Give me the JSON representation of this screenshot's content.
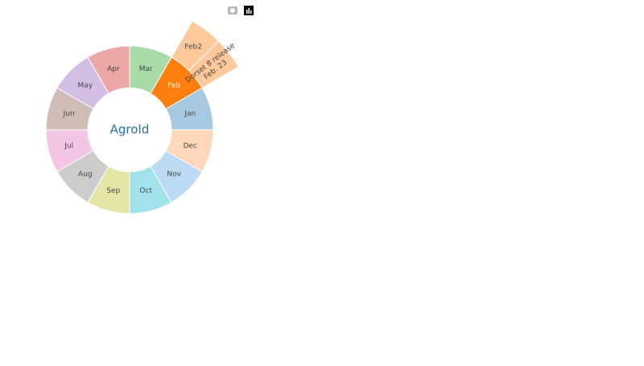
{
  "chart_data": {
    "type": "sunburst",
    "labels": [
      "AgroId",
      "Jan",
      "Feb",
      "Mar",
      "Apr",
      "May",
      "Jun",
      "Jul",
      "Aug",
      "Sep",
      "Oct",
      "Nov",
      "Dec",
      "Dorset 8 release<br>Feb. 23",
      "Feb2"
    ],
    "parents": [
      "",
      "AgroId",
      "AgroId",
      "AgroId",
      "AgroId",
      "AgroId",
      "AgroId",
      "AgroId",
      "AgroId",
      "AgroId",
      "AgroId",
      "AgroId",
      "AgroId",
      "Feb",
      "Feb"
    ],
    "values": [
      12,
      1,
      1,
      1,
      1,
      1,
      1,
      1,
      1,
      1,
      1,
      1,
      1,
      0.5,
      0.5
    ],
    "colors": [
      "#ffffff",
      "#a6c8e0",
      "#ff7f0e",
      "#a8dba8",
      "#eea7a7",
      "#d3bfe4",
      "#d0bdb8",
      "#f3c6e5",
      "#cccccc",
      "#e3e6a5",
      "#a2e2ea",
      "#bcdaf3",
      "#ffd8bc",
      "#ffc999",
      "#ffc999"
    ]
  }
}
